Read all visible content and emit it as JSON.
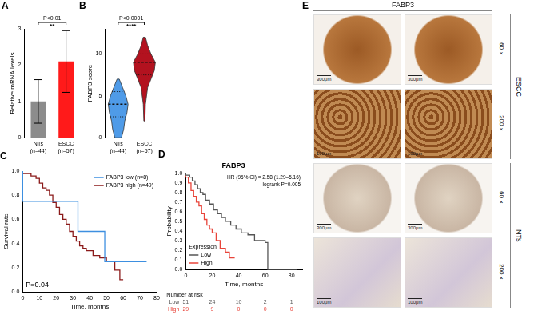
{
  "chart_data": [
    {
      "panel": "A",
      "type": "bar",
      "categories": [
        "NTs\n(n=44)",
        "ESCC\n(n=57)"
      ],
      "values": [
        1.0,
        2.1
      ],
      "errors": [
        0.6,
        0.85
      ],
      "colors": [
        "#8c8c8c",
        "#ff1a1a"
      ],
      "y_label": "Relative mRNA levels",
      "ylim": [
        0,
        3
      ],
      "yticks": [
        0,
        1,
        2,
        3
      ],
      "grid": false,
      "annotations": [
        "P<0.01",
        "**"
      ]
    },
    {
      "panel": "B",
      "type": "violin",
      "categories": [
        "NTs\n(n=44)",
        "ESCC\n(n=57)"
      ],
      "violins": [
        {
          "y": [
            0,
            1,
            2,
            3,
            4,
            5,
            6,
            7
          ],
          "widths": [
            0.3,
            0.5,
            0.6,
            0.8,
            0.9,
            0.7,
            0.4,
            0.1
          ],
          "q1": 2.5,
          "median": 4,
          "q3": 5.5
        },
        {
          "y": [
            2,
            4,
            6,
            7,
            8,
            9,
            10,
            11,
            12
          ],
          "widths": [
            0.05,
            0.1,
            0.3,
            0.6,
            0.9,
            1.0,
            0.6,
            0.3,
            0.1
          ],
          "q1": 7.5,
          "median": 9,
          "q3": 10
        }
      ],
      "colors": [
        "#4f9be8",
        "#b3121f"
      ],
      "y_label": "FABP3 score",
      "ylim": [
        0,
        13
      ],
      "yticks": [
        0,
        5,
        10
      ],
      "grid": false,
      "annotations": [
        "P<0.0001",
        "****"
      ]
    },
    {
      "panel": "C",
      "type": "line",
      "line_style": "step",
      "x_label": "Time, months",
      "y_label": "Survival rate",
      "xlim": [
        0,
        80
      ],
      "xticks": [
        0,
        10,
        20,
        30,
        40,
        50,
        60,
        70,
        80
      ],
      "ylim": [
        0,
        1
      ],
      "yticks": [
        {
          "value": 0,
          "label": "0.0"
        },
        0.2,
        0.4,
        0.6,
        0.8,
        {
          "value": 1,
          "label": "1.0"
        }
      ],
      "grid": false,
      "legend": "upper right",
      "series": [
        {
          "name": "FABP3 low (n=8)",
          "color": "#3d8fe0",
          "x": [
            0,
            33,
            49,
            60,
            74
          ],
          "values": [
            1.0,
            0.75,
            0.5,
            0.25,
            0.25
          ]
        },
        {
          "name": "FABP3 high (n=49)",
          "color": "#8b1a1a",
          "x": [
            0,
            5,
            8,
            10,
            12,
            14,
            16,
            18,
            20,
            22,
            24,
            26,
            28,
            30,
            32,
            34,
            36,
            38,
            42,
            46,
            50,
            55,
            58,
            60
          ],
          "values": [
            1.0,
            0.98,
            0.96,
            0.94,
            0.9,
            0.86,
            0.84,
            0.8,
            0.74,
            0.7,
            0.64,
            0.6,
            0.56,
            0.5,
            0.46,
            0.42,
            0.38,
            0.36,
            0.34,
            0.3,
            0.28,
            0.25,
            0.18,
            0.1
          ]
        }
      ],
      "annotations": [
        "P=0.04"
      ]
    },
    {
      "panel": "D",
      "type": "line",
      "line_style": "step",
      "title": "FABP3",
      "x_label": "Time, months",
      "y_label": "Probability",
      "xlim": [
        0,
        88
      ],
      "xticks": [
        0,
        20,
        40,
        60,
        80
      ],
      "ylim": [
        0,
        1
      ],
      "yticks": [
        {
          "value": 0,
          "label": "0.0"
        },
        0.1,
        0.2,
        0.3,
        0.4,
        0.5,
        0.6,
        0.7,
        0.8,
        0.9,
        {
          "value": 1,
          "label": "1.0"
        }
      ],
      "grid": false,
      "legend": "lower left",
      "legend_title": "Expression",
      "series": [
        {
          "name": "Low",
          "color": "#555555",
          "x": [
            0,
            3,
            5,
            7,
            9,
            11,
            13,
            15,
            18,
            21,
            24,
            27,
            30,
            34,
            38,
            42,
            47,
            52,
            60,
            62,
            84
          ],
          "values": [
            1.0,
            0.98,
            0.96,
            0.92,
            0.88,
            0.84,
            0.8,
            0.78,
            0.72,
            0.68,
            0.62,
            0.58,
            0.54,
            0.5,
            0.46,
            0.42,
            0.38,
            0.36,
            0.3,
            0.28,
            0.0
          ]
        },
        {
          "name": "High",
          "color": "#e8443a",
          "x": [
            0,
            2,
            4,
            6,
            8,
            10,
            12,
            14,
            16,
            18,
            20,
            23,
            26,
            30,
            33,
            35,
            37
          ],
          "values": [
            1.0,
            0.96,
            0.9,
            0.82,
            0.76,
            0.7,
            0.66,
            0.58,
            0.52,
            0.46,
            0.42,
            0.38,
            0.3,
            0.22,
            0.18,
            0.12,
            0.12
          ]
        }
      ],
      "annotations": [
        "HR (95% CI) = 2.58 (1.29–5.16)",
        "logrank P=0.005"
      ],
      "risk_table": {
        "title": "Number at risk",
        "rows": [
          {
            "name": "Low",
            "values": [
              51,
              24,
              10,
              2,
              1
            ]
          },
          {
            "name": "High",
            "values": [
              29,
              9,
              0,
              0,
              0
            ]
          }
        ]
      }
    }
  ],
  "image_panel": {
    "panel": "E",
    "title": "FABP3",
    "groups": [
      {
        "name": "ESCC",
        "rows": [
          {
            "magnification": "60×",
            "scale_bars": [
              "300μm",
              "300μm"
            ]
          },
          {
            "magnification": "200×",
            "scale_bars": [
              "100μm",
              "100μm"
            ]
          }
        ]
      },
      {
        "name": "NTs",
        "rows": [
          {
            "magnification": "60×",
            "scale_bars": [
              "300μm",
              "300μm"
            ]
          },
          {
            "magnification": "200×",
            "scale_bars": [
              "100μm",
              "100μm"
            ]
          }
        ]
      }
    ]
  }
}
